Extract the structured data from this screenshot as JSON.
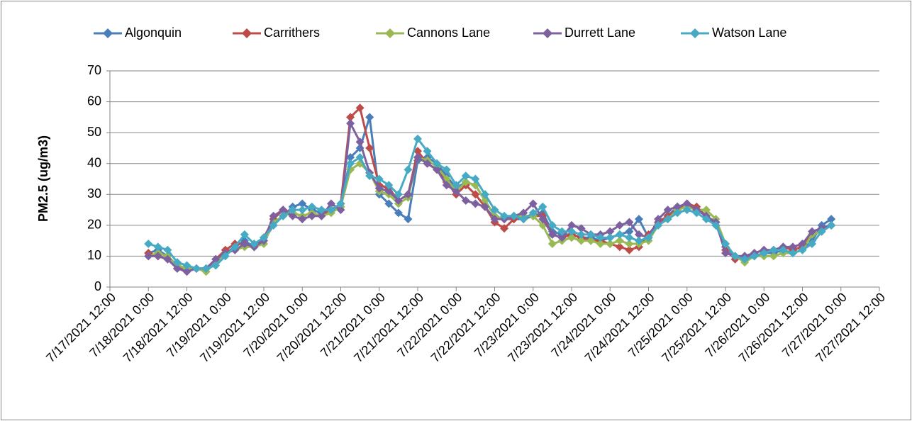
{
  "chart_data": {
    "type": "line",
    "y_label": "PM2.5 (ug/m3)",
    "xlim": [
      "7/17/2021 12:00",
      "7/27/2021 12:00"
    ],
    "xticks": [
      "7/17/2021 12:00",
      "7/18/2021 0:00",
      "7/18/2021 12:00",
      "7/19/2021 0:00",
      "7/19/2021 12:00",
      "7/20/2021 0:00",
      "7/20/2021 12:00",
      "7/21/2021 0:00",
      "7/21/2021 12:00",
      "7/22/2021 0:00",
      "7/22/2021 12:00",
      "7/23/2021 0:00",
      "7/23/2021 12:00",
      "7/24/2021 0:00",
      "7/24/2021 12:00",
      "7/25/2021 0:00",
      "7/25/2021 12:00",
      "7/26/2021 0:00",
      "7/26/2021 12:00",
      "7/27/2021 0:00",
      "7/27/2021 12:00"
    ],
    "ylim": [
      0,
      70
    ],
    "yticks": [
      0,
      10,
      20,
      30,
      40,
      50,
      60,
      70
    ],
    "grid": true,
    "legend": "top",
    "x": [
      "7/18/2021 0:00",
      "7/18/2021 3:00",
      "7/18/2021 6:00",
      "7/18/2021 9:00",
      "7/18/2021 12:00",
      "7/18/2021 15:00",
      "7/18/2021 18:00",
      "7/18/2021 21:00",
      "7/19/2021 0:00",
      "7/19/2021 3:00",
      "7/19/2021 6:00",
      "7/19/2021 9:00",
      "7/19/2021 12:00",
      "7/19/2021 15:00",
      "7/19/2021 18:00",
      "7/19/2021 21:00",
      "7/20/2021 0:00",
      "7/20/2021 3:00",
      "7/20/2021 6:00",
      "7/20/2021 9:00",
      "7/20/2021 12:00",
      "7/20/2021 15:00",
      "7/20/2021 18:00",
      "7/20/2021 21:00",
      "7/21/2021 0:00",
      "7/21/2021 3:00",
      "7/21/2021 6:00",
      "7/21/2021 9:00",
      "7/21/2021 12:00",
      "7/21/2021 15:00",
      "7/21/2021 18:00",
      "7/21/2021 21:00",
      "7/22/2021 0:00",
      "7/22/2021 3:00",
      "7/22/2021 6:00",
      "7/22/2021 9:00",
      "7/22/2021 12:00",
      "7/22/2021 15:00",
      "7/22/2021 18:00",
      "7/22/2021 21:00",
      "7/23/2021 0:00",
      "7/23/2021 3:00",
      "7/23/2021 6:00",
      "7/23/2021 9:00",
      "7/23/2021 12:00",
      "7/23/2021 15:00",
      "7/23/2021 18:00",
      "7/23/2021 21:00",
      "7/24/2021 0:00",
      "7/24/2021 3:00",
      "7/24/2021 6:00",
      "7/24/2021 9:00",
      "7/24/2021 12:00",
      "7/24/2021 15:00",
      "7/24/2021 18:00",
      "7/24/2021 21:00",
      "7/25/2021 0:00",
      "7/25/2021 3:00",
      "7/25/2021 6:00",
      "7/25/2021 9:00",
      "7/25/2021 12:00",
      "7/25/2021 15:00",
      "7/25/2021 18:00",
      "7/25/2021 21:00",
      "7/26/2021 0:00",
      "7/26/2021 3:00",
      "7/26/2021 6:00",
      "7/26/2021 9:00",
      "7/26/2021 12:00",
      "7/26/2021 15:00",
      "7/26/2021 18:00",
      "7/26/2021 21:00"
    ],
    "series": [
      {
        "name": "Algonquin",
        "color": "#4a7ebb",
        "values": [
          11,
          12,
          10,
          7,
          6,
          6,
          6,
          8,
          11,
          13,
          15,
          13,
          15,
          20,
          23,
          26,
          27,
          25,
          24,
          25,
          26,
          42,
          45,
          55,
          30,
          27,
          24,
          22,
          41,
          42,
          40,
          36,
          32,
          34,
          33,
          28,
          23,
          22,
          22,
          22,
          23,
          24,
          18,
          17,
          17,
          16,
          16,
          15,
          16,
          17,
          18,
          22,
          16,
          20,
          23,
          26,
          26,
          25,
          23,
          20,
          13,
          10,
          10,
          10,
          11,
          11,
          12,
          11,
          12,
          15,
          20,
          22
        ]
      },
      {
        "name": "Carrithers",
        "color": "#be4b48",
        "values": [
          11,
          10,
          9,
          6,
          6,
          6,
          6,
          9,
          12,
          14,
          14,
          13,
          16,
          22,
          25,
          24,
          23,
          24,
          23,
          25,
          27,
          55,
          58,
          45,
          33,
          32,
          28,
          30,
          44,
          40,
          38,
          34,
          30,
          33,
          30,
          26,
          21,
          19,
          22,
          23,
          23,
          23,
          17,
          16,
          17,
          16,
          15,
          15,
          14,
          13,
          12,
          13,
          17,
          21,
          23,
          25,
          27,
          26,
          23,
          21,
          12,
          9,
          10,
          11,
          12,
          12,
          13,
          12,
          13,
          17,
          18,
          20
        ]
      },
      {
        "name": "Cannons Lane",
        "color": "#98b954",
        "values": [
          10,
          11,
          10,
          7,
          6,
          6,
          5,
          8,
          11,
          12,
          13,
          13,
          14,
          21,
          23,
          24,
          23,
          24,
          23,
          24,
          26,
          38,
          40,
          37,
          31,
          30,
          27,
          29,
          42,
          41,
          39,
          35,
          31,
          34,
          33,
          28,
          23,
          22,
          23,
          23,
          23,
          20,
          14,
          15,
          16,
          15,
          15,
          14,
          14,
          15,
          14,
          14,
          15,
          20,
          22,
          25,
          26,
          25,
          25,
          22,
          14,
          10,
          8,
          10,
          10,
          10,
          11,
          11,
          12,
          17,
          18,
          20
        ]
      },
      {
        "name": "Durrett Lane",
        "color": "#7d60a0",
        "values": [
          10,
          10,
          9,
          6,
          5,
          6,
          6,
          9,
          11,
          12,
          14,
          13,
          15,
          23,
          25,
          23,
          22,
          23,
          23,
          27,
          25,
          53,
          47,
          37,
          32,
          31,
          28,
          30,
          42,
          40,
          38,
          33,
          31,
          28,
          27,
          26,
          22,
          22,
          23,
          24,
          27,
          22,
          17,
          16,
          20,
          19,
          17,
          17,
          18,
          20,
          21,
          17,
          16,
          22,
          25,
          26,
          27,
          25,
          23,
          21,
          11,
          10,
          10,
          11,
          12,
          12,
          13,
          13,
          14,
          18,
          19,
          20
        ]
      },
      {
        "name": "Watson Lane",
        "color": "#46aac5",
        "values": [
          14,
          13,
          12,
          8,
          7,
          6,
          6,
          7,
          10,
          13,
          17,
          14,
          16,
          20,
          23,
          25,
          25,
          26,
          25,
          25,
          27,
          40,
          42,
          36,
          35,
          33,
          30,
          38,
          48,
          44,
          40,
          38,
          33,
          36,
          35,
          30,
          25,
          23,
          23,
          22,
          24,
          26,
          20,
          18,
          18,
          17,
          17,
          16,
          16,
          17,
          16,
          15,
          16,
          20,
          22,
          24,
          25,
          24,
          22,
          20,
          14,
          10,
          9,
          10,
          11,
          12,
          12,
          11,
          12,
          14,
          18,
          20
        ]
      }
    ]
  }
}
